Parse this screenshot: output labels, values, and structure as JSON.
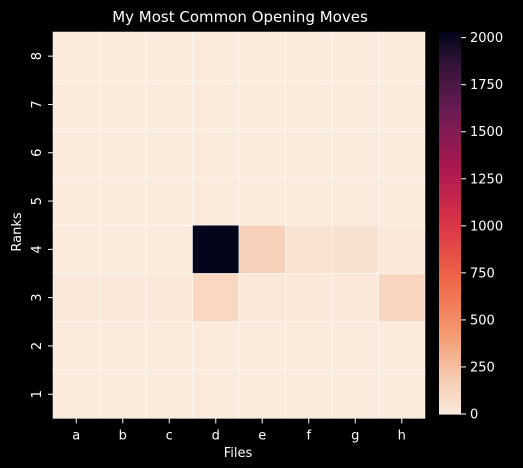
{
  "chart_data": {
    "type": "heatmap",
    "title": "My Most Common Opening Moves",
    "xlabel": "Files",
    "ylabel": "Ranks",
    "x_categories": [
      "a",
      "b",
      "c",
      "d",
      "e",
      "f",
      "g",
      "h"
    ],
    "y_categories": [
      "8",
      "7",
      "6",
      "5",
      "4",
      "3",
      "2",
      "1"
    ],
    "values": [
      [
        0,
        0,
        0,
        0,
        0,
        0,
        0,
        0
      ],
      [
        0,
        0,
        0,
        0,
        0,
        0,
        0,
        0
      ],
      [
        0,
        0,
        0,
        0,
        0,
        0,
        0,
        0
      ],
      [
        0,
        0,
        0,
        0,
        0,
        0,
        0,
        0
      ],
      [
        0,
        0,
        0,
        2030,
        150,
        40,
        60,
        20
      ],
      [
        10,
        10,
        20,
        120,
        10,
        20,
        10,
        130
      ],
      [
        0,
        0,
        0,
        0,
        0,
        0,
        0,
        0
      ],
      [
        0,
        0,
        0,
        0,
        0,
        0,
        0,
        0
      ]
    ],
    "colorbar": {
      "min": 0,
      "max": 2030,
      "ticks": [
        0,
        250,
        500,
        750,
        1000,
        1250,
        1500,
        1750,
        2000
      ],
      "colormap": "rocket_r"
    },
    "grid": true,
    "cell_line_color": "#ffffff"
  },
  "colors": {
    "background": "#000000",
    "text": "#ffffff"
  }
}
